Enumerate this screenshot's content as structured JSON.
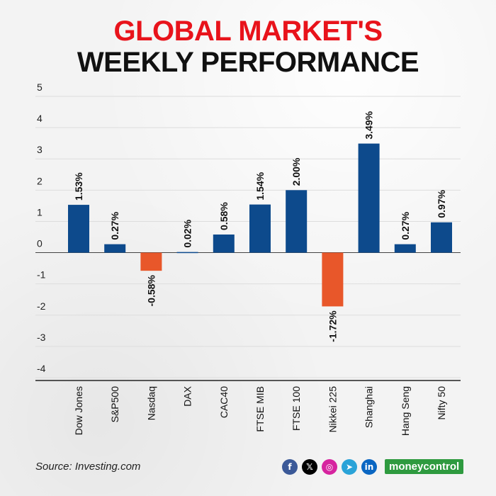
{
  "header": {
    "title_line1": "GLOBAL MARKET'S",
    "title_line2": "WEEKLY PERFORMANCE"
  },
  "footer": {
    "source": "Source: Investing.com",
    "brand": "moneycontrol"
  },
  "social_icons": [
    {
      "name": "facebook-icon",
      "glyph": "f",
      "color": "#3b5998"
    },
    {
      "name": "x-icon",
      "glyph": "𝕏",
      "color": "#000000"
    },
    {
      "name": "instagram-icon",
      "glyph": "◎",
      "color": "#d6249f"
    },
    {
      "name": "telegram-icon",
      "glyph": "➤",
      "color": "#2aa3d8"
    },
    {
      "name": "linkedin-icon",
      "glyph": "in",
      "color": "#0a66c2"
    }
  ],
  "colors": {
    "positive": "#0d4a8c",
    "negative": "#e8572a",
    "title_accent": "#e8131b"
  },
  "chart_data": {
    "type": "bar",
    "categories": [
      "Dow Jones",
      "S&P500",
      "Nasdaq",
      "DAX",
      "CAC40",
      "FTSE MIB",
      "FTSE 100",
      "Nikkei 225",
      "Shanghai",
      "Hang Seng",
      "Nifty 50"
    ],
    "values": [
      1.53,
      0.27,
      -0.58,
      0.02,
      0.58,
      1.54,
      2.0,
      -1.72,
      3.49,
      0.27,
      0.97
    ],
    "labels": [
      "1.53%",
      "0.27%",
      "-0.58%",
      "0.02%",
      "0.58%",
      "1.54%",
      "2.00%",
      "-1.72%",
      "3.49%",
      "0.27%",
      "0.97%"
    ],
    "yticks": [
      "5",
      "4",
      "3",
      "2",
      "1",
      "0",
      "-1",
      "-2",
      "-3",
      "-4"
    ],
    "ylim": [
      -4,
      5
    ],
    "grid": true
  }
}
